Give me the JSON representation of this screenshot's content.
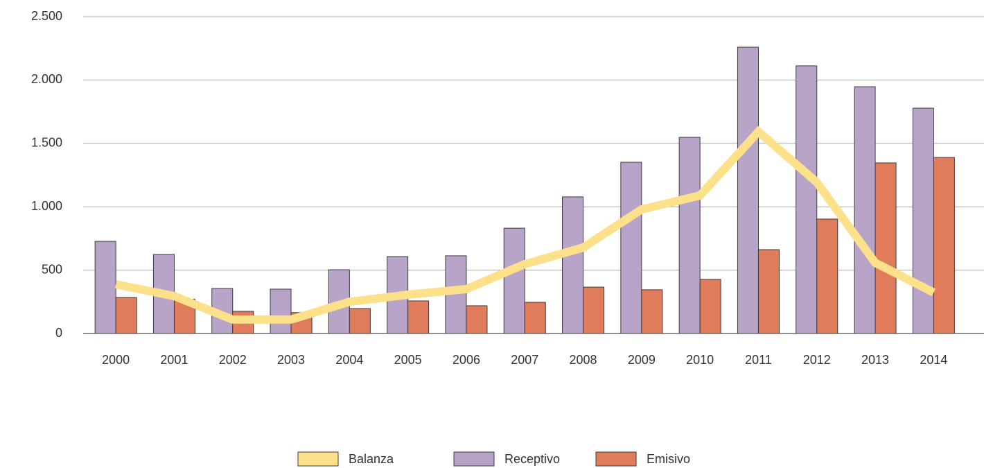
{
  "chart_data": {
    "type": "bar",
    "categories": [
      "2000",
      "2001",
      "2002",
      "2003",
      "2004",
      "2005",
      "2006",
      "2007",
      "2008",
      "2009",
      "2010",
      "2011",
      "2012",
      "2013",
      "2014"
    ],
    "series": [
      {
        "name": "Balanza",
        "type": "line",
        "color": "#fde08a",
        "values": [
          388,
          295,
          110,
          110,
          250,
          306,
          350,
          547,
          678,
          979,
          1089,
          1592,
          1193,
          558,
          323
        ]
      },
      {
        "name": "Receptivo",
        "color": "#b9a4c9",
        "values": [
          727,
          624,
          355,
          350,
          503,
          607,
          613,
          831,
          1078,
          1351,
          1548,
          2259,
          2112,
          1947,
          1778
        ]
      },
      {
        "name": "Emisivo",
        "color": "#e07c5b",
        "values": [
          284,
          270,
          175,
          165,
          197,
          257,
          219,
          246,
          366,
          345,
          427,
          662,
          903,
          1346,
          1389
        ]
      }
    ],
    "ylim": [
      0,
      2500
    ],
    "yticks": [
      0,
      500,
      {
        "value": 1000,
        "label": "1.000"
      },
      {
        "value": 1500,
        "label": "1.500"
      },
      {
        "value": 2000,
        "label": "2.000"
      },
      {
        "value": 2500,
        "label": "2.500"
      }
    ],
    "grid": true,
    "legend": "bottom"
  }
}
